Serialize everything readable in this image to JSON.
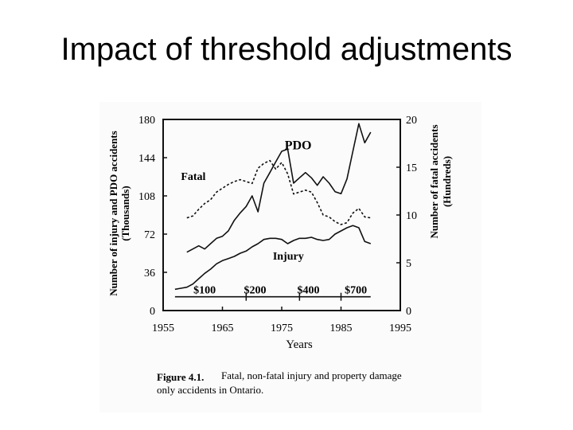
{
  "slide": {
    "title": "Impact of threshold adjustments"
  },
  "chart_data": {
    "type": "line",
    "title": "",
    "xlabel": "Years",
    "ylabel_left": "Number of injury and PDO accidents (Thousands)",
    "ylabel_right": "Number of fatal accidents (Hundreds)",
    "x_ticks": [
      "1955",
      "1965",
      "1975",
      "1985",
      "1995"
    ],
    "xlim": [
      1955,
      1995
    ],
    "y_left_ticks": [
      "0",
      "36",
      "72",
      "108",
      "144",
      "180"
    ],
    "y_left_lim": [
      0,
      180
    ],
    "y_right_ticks": [
      "0",
      "5",
      "10",
      "15",
      "20"
    ],
    "y_right_lim": [
      0,
      20
    ],
    "grid": false,
    "series": [
      {
        "name": "PDO",
        "axis": "left",
        "style": "solid",
        "x": [
          1959,
          1960,
          1961,
          1962,
          1963,
          1964,
          1965,
          1966,
          1967,
          1968,
          1969,
          1970,
          1971,
          1972,
          1973,
          1974,
          1975,
          1976,
          1977,
          1978,
          1979,
          1980,
          1981,
          1982,
          1983,
          1984,
          1985,
          1986,
          1987,
          1988,
          1989,
          1990
        ],
        "values": [
          55,
          58,
          61,
          58,
          63,
          68,
          70,
          75,
          85,
          92,
          98,
          108,
          93,
          120,
          130,
          140,
          150,
          152,
          120,
          125,
          130,
          125,
          118,
          126,
          120,
          112,
          110,
          124,
          150,
          176,
          158,
          168
        ]
      },
      {
        "name": "Fatal",
        "axis": "right",
        "style": "dashed",
        "x": [
          1959,
          1960,
          1961,
          1962,
          1963,
          1964,
          1965,
          1966,
          1967,
          1968,
          1969,
          1970,
          1971,
          1972,
          1973,
          1974,
          1975,
          1976,
          1977,
          1978,
          1979,
          1980,
          1981,
          1982,
          1983,
          1984,
          1985,
          1986,
          1987,
          1988,
          1989,
          1990
        ],
        "values": [
          9.7,
          9.9,
          10.6,
          11.2,
          11.6,
          12.4,
          12.8,
          13.2,
          13.5,
          13.7,
          13.5,
          13.3,
          14.9,
          15.4,
          15.7,
          14.8,
          15.5,
          14.3,
          12.2,
          12.4,
          12.6,
          12.4,
          11.3,
          10.0,
          9.8,
          9.3,
          9.0,
          9.2,
          10.2,
          10.7,
          9.8,
          9.7
        ]
      },
      {
        "name": "Injury",
        "axis": "left",
        "style": "solid",
        "x": [
          1957,
          1958,
          1959,
          1960,
          1961,
          1962,
          1963,
          1964,
          1965,
          1966,
          1967,
          1968,
          1969,
          1970,
          1971,
          1972,
          1973,
          1974,
          1975,
          1976,
          1977,
          1978,
          1979,
          1980,
          1981,
          1982,
          1983,
          1984,
          1985,
          1986,
          1987,
          1988,
          1989,
          1990
        ],
        "values": [
          20,
          21,
          22,
          25,
          30,
          35,
          39,
          44,
          47,
          49,
          51,
          54,
          56,
          60,
          63,
          67,
          68,
          68,
          67,
          63,
          66,
          68,
          68,
          69,
          67,
          66,
          67,
          72,
          75,
          78,
          80,
          78,
          65,
          63
        ]
      }
    ],
    "annotations": {
      "series_labels": [
        "PDO",
        "Fatal",
        "Injury"
      ],
      "thresholds": [
        "$100",
        "$200",
        "$400",
        "$700"
      ]
    },
    "threshold_years": [
      1969,
      1978,
      1985
    ]
  },
  "figure": {
    "caption_label": "Figure 4.1.",
    "caption_text": "Fatal, non-fatal injury and property damage",
    "caption_text_2": "only accidents in Ontario."
  }
}
